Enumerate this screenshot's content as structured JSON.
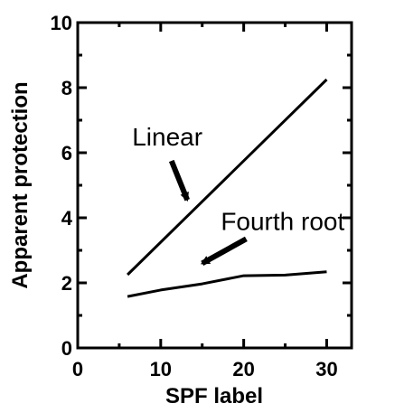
{
  "chart_data": {
    "type": "line",
    "title": "",
    "xlabel": "SPF label",
    "ylabel": "Apparent protection",
    "xlim": [
      0,
      33
    ],
    "ylim": [
      0,
      10
    ],
    "x_ticks": [
      0,
      10,
      20,
      30
    ],
    "y_ticks": [
      0,
      2,
      4,
      6,
      8,
      10
    ],
    "grid": false,
    "series": [
      {
        "values_x": [
          6,
          30
        ],
        "values_y": [
          2.25,
          8.25
        ],
        "color": "#000000"
      },
      {
        "values_x": [
          6,
          10,
          15,
          20,
          25,
          30
        ],
        "values_y": [
          1.58,
          1.78,
          1.97,
          2.22,
          2.24,
          2.34
        ],
        "color": "#000000"
      }
    ],
    "annotations": [
      {
        "text": "Linear",
        "x": 10.8,
        "y": 6.5,
        "arrow_to": [
          13.2,
          4.55
        ]
      },
      {
        "text": "Fourth root",
        "x": 24.7,
        "y": 3.9,
        "arrow_to": [
          15.0,
          2.6
        ]
      }
    ]
  }
}
